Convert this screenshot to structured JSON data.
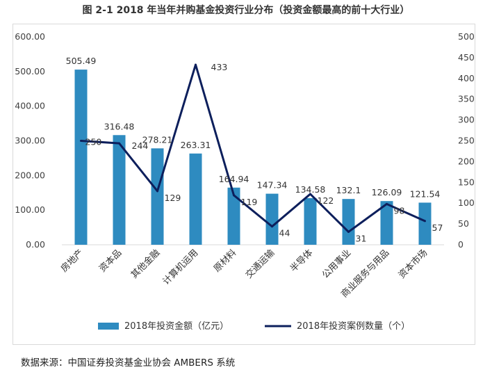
{
  "figure_title": "图 2-1 2018 年当年并购基金投资行业分布（投资金额最高的前十大行业）",
  "source_note": "数据来源：中国证券投资基金业协会 AMBERS 系统",
  "colors": {
    "bar": "#2e8bc0",
    "line": "#0d1f5c",
    "axis_text": "#404040",
    "grid": "#d9d9d9"
  },
  "chart_data": {
    "type": "bar",
    "categories": [
      "房地产",
      "资本品",
      "其他金融",
      "计算机运用",
      "原材料",
      "交通运输",
      "半导体",
      "公用事业",
      "商业服务与用品",
      "资本市场"
    ],
    "series": [
      {
        "name": "2018年投资金额（亿元）",
        "type": "bar",
        "axis": "left",
        "values": [
          505.49,
          316.48,
          278.21,
          263.31,
          164.94,
          147.34,
          134.58,
          132.1,
          126.09,
          121.54
        ],
        "labels": [
          "505.49",
          "316.48",
          "278.21",
          "263.31",
          "164.94",
          "147.34",
          "134.58",
          "132.1",
          "126.09",
          "121.54"
        ]
      },
      {
        "name": "2018年投资案例数量（个）",
        "type": "line",
        "axis": "right",
        "values": [
          250,
          244,
          129,
          433,
          119,
          44,
          122,
          31,
          98,
          57
        ],
        "labels": [
          "250",
          "244",
          "129",
          "433",
          "119",
          "44",
          "122",
          "31",
          "98",
          "57"
        ]
      }
    ],
    "y_left": {
      "min": 0,
      "max": 600,
      "ticks": [
        "0.00",
        "100.00",
        "200.00",
        "300.00",
        "400.00",
        "500.00",
        "600.00"
      ]
    },
    "y_right": {
      "min": 0,
      "max": 500,
      "ticks": [
        "0",
        "50",
        "100",
        "150",
        "200",
        "250",
        "300",
        "350",
        "400",
        "450",
        "500"
      ]
    },
    "legend_position": "bottom",
    "grid": false
  }
}
